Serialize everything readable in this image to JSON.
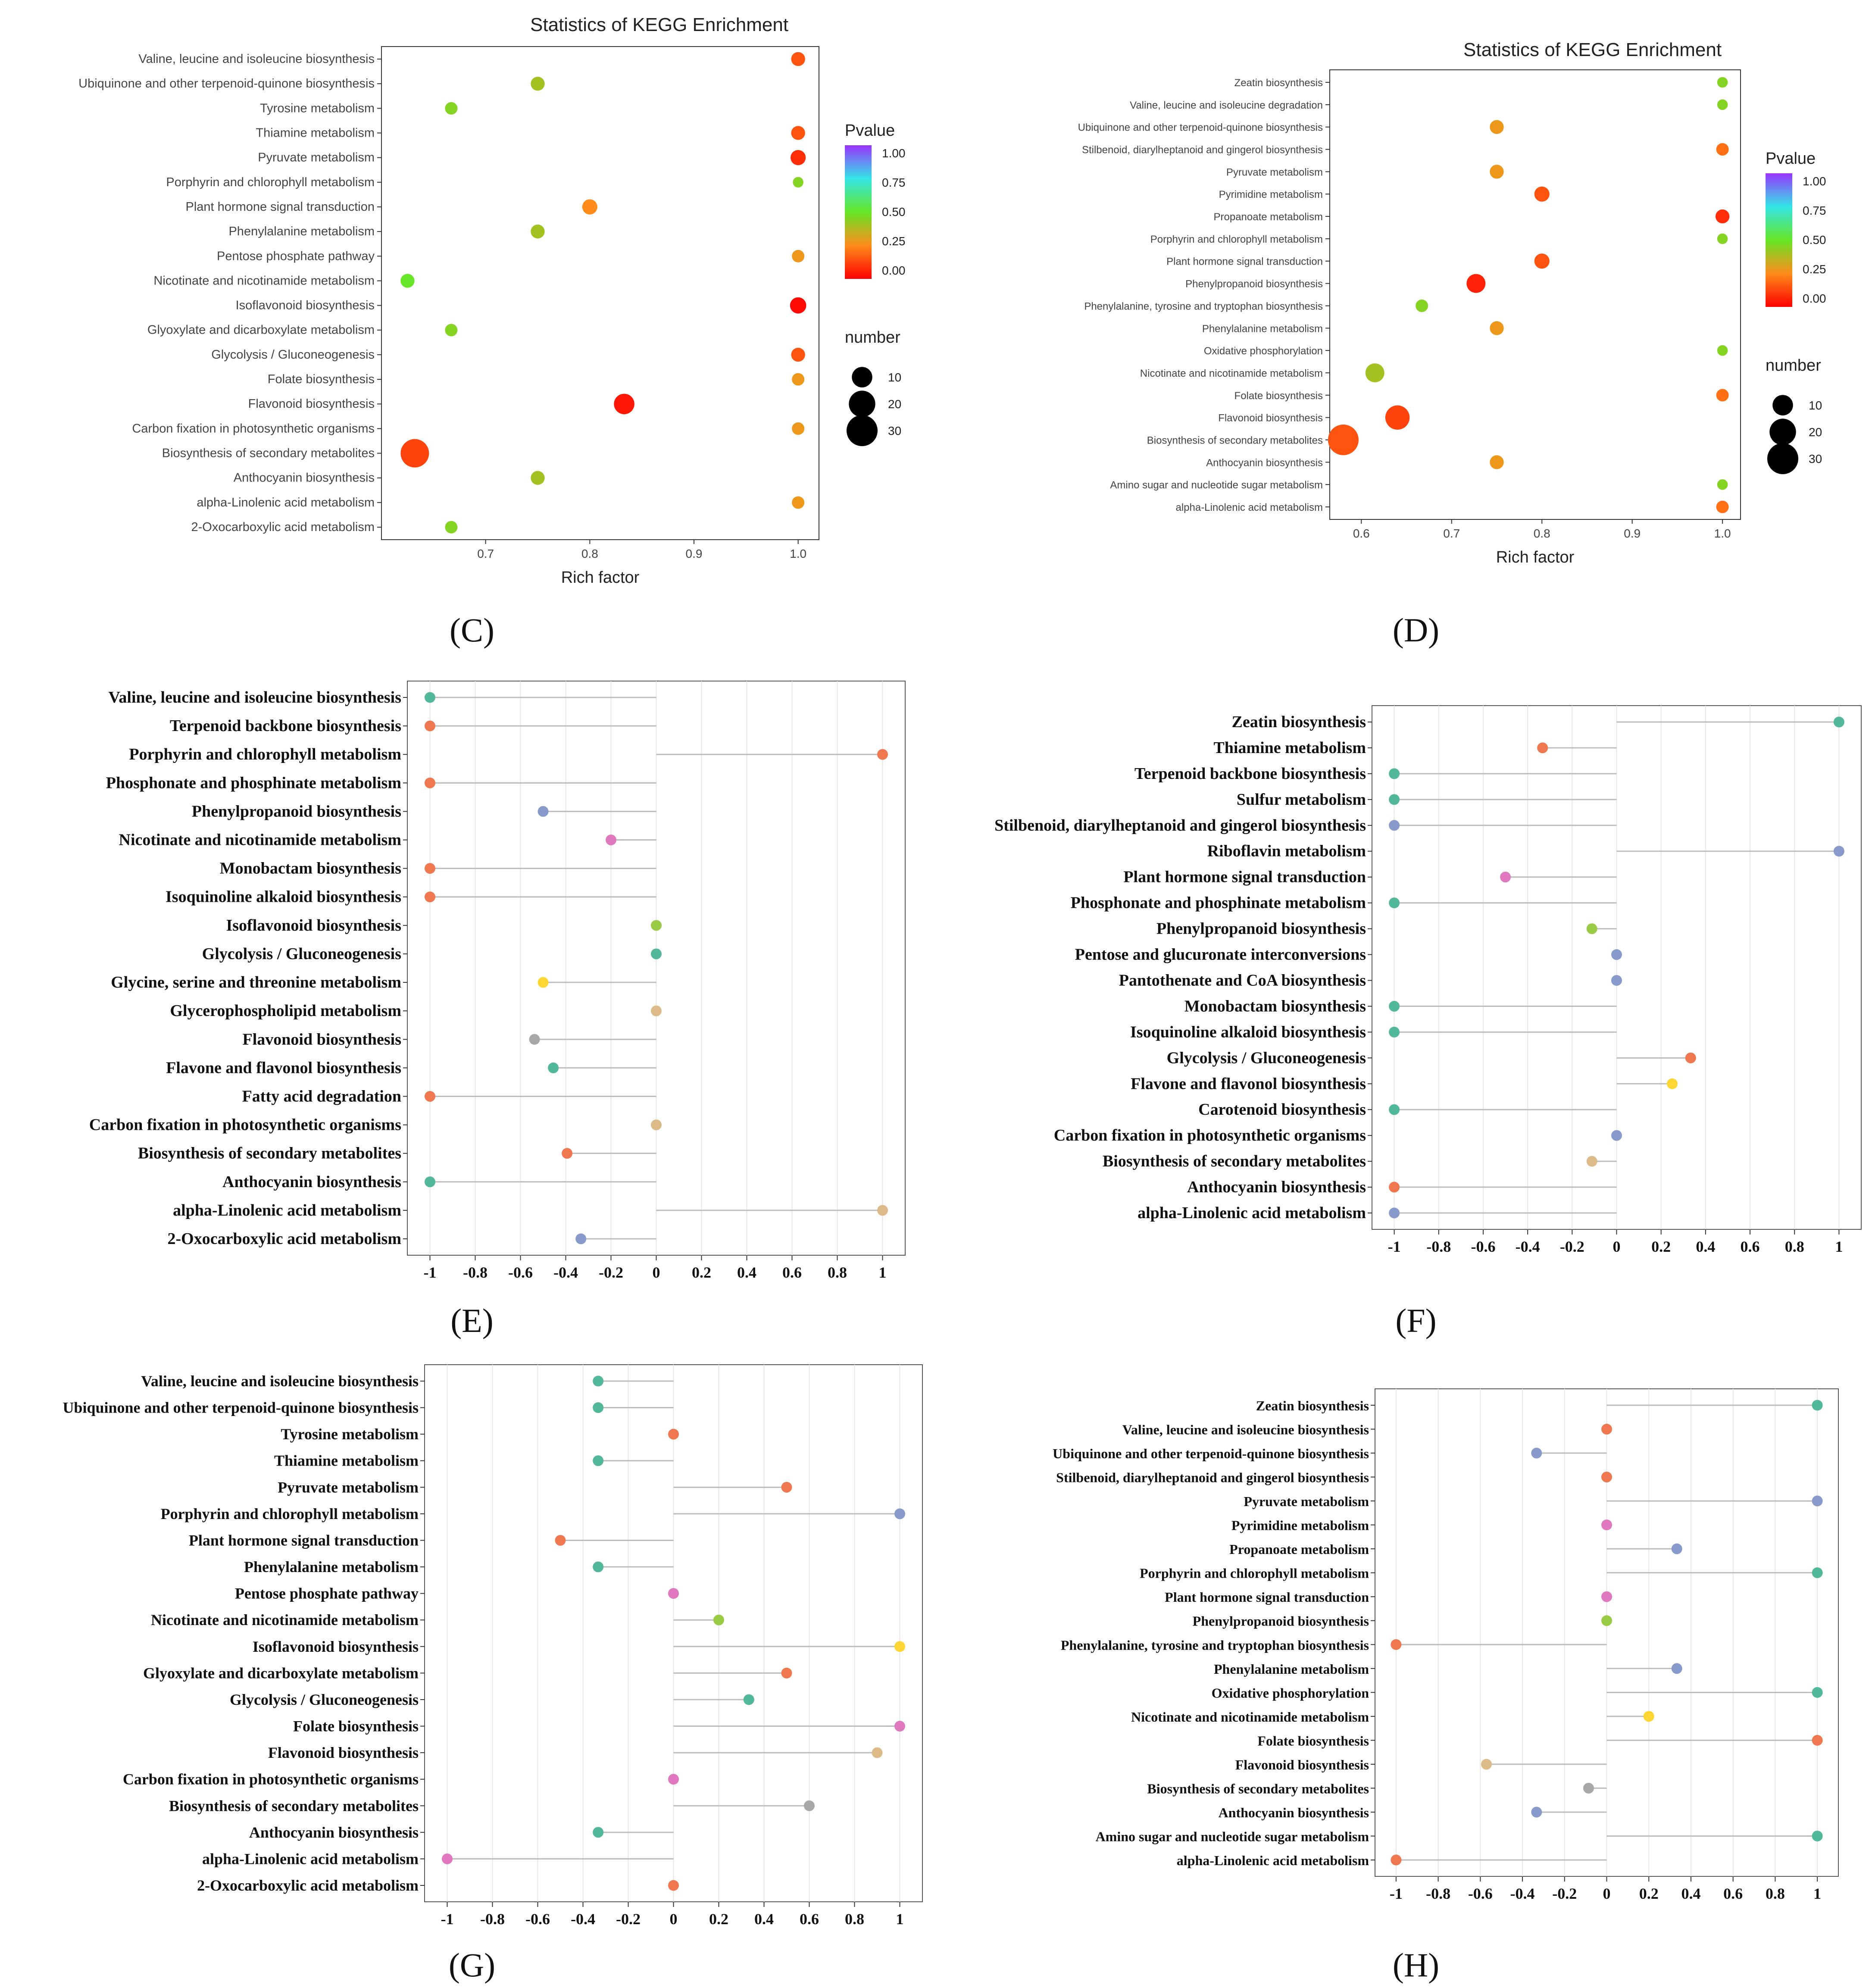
{
  "colors": {
    "pvalue_gradient": [
      "#ff0000",
      "#ff8c1a",
      "#66e626",
      "#33e6e6",
      "#9933ff"
    ],
    "lollipop_palette": {
      "teal": "#52b89a",
      "orange": "#f07850",
      "blue": "#8899cc",
      "pink": "#e078c0",
      "green": "#99cc44",
      "yellow": "#ffd633",
      "tan": "#ddbb88",
      "grey": "#a8a8a8"
    },
    "stem": "#bbbbbb",
    "grid": "#e6e6e6"
  },
  "chart_data": [
    {
      "id": "C",
      "type": "scatter",
      "caption": "(C)",
      "title": "Statistics of KEGG Enrichment",
      "xlabel": "Rich factor",
      "ylabel": "",
      "xlim": [
        0.6,
        1.02
      ],
      "xticks": [
        "0.7",
        "0.8",
        "0.9",
        "1.0"
      ],
      "xtick_values": [
        0.7,
        0.8,
        0.9,
        1.0
      ],
      "legend": {
        "color_title": "Pvalue",
        "color_ticks": [
          "1.00",
          "0.75",
          "0.50",
          "0.25",
          "0.00"
        ],
        "size_title": "number",
        "size_ticks": [
          "10",
          "20",
          "30"
        ],
        "size_values": [
          10,
          20,
          30
        ]
      },
      "categories": [
        "Valine, leucine and isoleucine biosynthesis",
        "Ubiquinone and other terpenoid-quinone biosynthesis",
        "Tyrosine metabolism",
        "Thiamine metabolism",
        "Pyruvate metabolism",
        "Porphyrin and chlorophyll metabolism",
        "Plant hormone signal transduction",
        "Phenylalanine metabolism",
        "Pentose phosphate pathway",
        "Nicotinate and nicotinamide metabolism",
        "Isoflavonoid biosynthesis",
        "Glyoxylate and dicarboxylate metabolism",
        "Glycolysis / Gluconeogenesis",
        "Folate biosynthesis",
        "Flavonoid biosynthesis",
        "Carbon fixation in photosynthetic organisms",
        "Biosynthesis of secondary metabolites",
        "Anthocyanin biosynthesis",
        "alpha-Linolenic acid metabolism",
        "2-Oxocarboxylic acid metabolism"
      ],
      "rich_factor": [
        1.0,
        0.75,
        0.667,
        1.0,
        1.0,
        1.0,
        0.8,
        0.75,
        1.0,
        0.625,
        1.0,
        0.667,
        1.0,
        1.0,
        0.833,
        1.0,
        0.632,
        0.75,
        1.0,
        0.667
      ],
      "pvalue": [
        0.15,
        0.4,
        0.45,
        0.15,
        0.08,
        0.45,
        0.25,
        0.4,
        0.28,
        0.5,
        0.02,
        0.45,
        0.15,
        0.28,
        0.04,
        0.28,
        0.12,
        0.4,
        0.28,
        0.45
      ],
      "number": [
        3,
        3,
        2,
        3,
        4,
        1,
        4,
        3,
        2,
        3,
        5,
        2,
        3,
        2,
        10,
        2,
        24,
        3,
        2,
        2
      ]
    },
    {
      "id": "D",
      "type": "scatter",
      "caption": "(D)",
      "title": "Statistics of KEGG Enrichment",
      "xlabel": "Rich factor",
      "ylabel": "",
      "xlim": [
        0.565,
        1.02
      ],
      "xticks": [
        "0.6",
        "0.7",
        "0.8",
        "0.9",
        "1.0"
      ],
      "xtick_values": [
        0.6,
        0.7,
        0.8,
        0.9,
        1.0
      ],
      "legend": {
        "color_title": "Pvalue",
        "color_ticks": [
          "1.00",
          "0.75",
          "0.50",
          "0.25",
          "0.00"
        ],
        "size_title": "number",
        "size_ticks": [
          "10",
          "20",
          "30"
        ],
        "size_values": [
          10,
          20,
          30
        ]
      },
      "categories": [
        "Zeatin biosynthesis",
        "Valine, leucine and isoleucine degradation",
        "Ubiquinone and other terpenoid-quinone biosynthesis",
        "Stilbenoid, diarylheptanoid and gingerol biosynthesis",
        "Pyruvate metabolism",
        "Pyrimidine metabolism",
        "Propanoate metabolism",
        "Porphyrin and chlorophyll metabolism",
        "Plant hormone signal transduction",
        "Phenylpropanoid biosynthesis",
        "Phenylalanine, tyrosine and tryptophan biosynthesis",
        "Phenylalanine metabolism",
        "Oxidative phosphorylation",
        "Nicotinate and nicotinamide metabolism",
        "Folate biosynthesis",
        "Flavonoid biosynthesis",
        "Biosynthesis of secondary metabolites",
        "Anthocyanin biosynthesis",
        "Amino sugar and nucleotide sugar metabolism",
        "alpha-Linolenic acid metabolism"
      ],
      "rich_factor": [
        1.0,
        1.0,
        0.75,
        1.0,
        0.75,
        0.8,
        1.0,
        1.0,
        0.8,
        0.727,
        0.667,
        0.75,
        1.0,
        0.615,
        1.0,
        0.64,
        0.58,
        0.75,
        1.0,
        1.0
      ],
      "pvalue": [
        0.45,
        0.45,
        0.28,
        0.2,
        0.28,
        0.15,
        0.08,
        0.45,
        0.15,
        0.06,
        0.45,
        0.28,
        0.45,
        0.4,
        0.2,
        0.12,
        0.15,
        0.28,
        0.45,
        0.2
      ],
      "number": [
        1,
        1,
        3,
        2,
        3,
        4,
        3,
        1,
        4,
        8,
        2,
        3,
        1,
        8,
        2,
        16,
        29,
        3,
        1,
        2
      ]
    },
    {
      "id": "E",
      "type": "lollipop",
      "caption": "(E)",
      "xlim": [
        -1.1,
        1.1
      ],
      "xticks": [
        "-1",
        "-0.8",
        "-0.6",
        "-0.4",
        "-0.2",
        "0",
        "0.2",
        "0.4",
        "0.6",
        "0.8",
        "1"
      ],
      "xtick_values": [
        -1,
        -0.8,
        -0.6,
        -0.4,
        -0.2,
        0,
        0.2,
        0.4,
        0.6,
        0.8,
        1
      ],
      "categories": [
        "Valine, leucine and isoleucine biosynthesis",
        "Terpenoid backbone biosynthesis",
        "Porphyrin and chlorophyll metabolism",
        "Phosphonate and phosphinate metabolism",
        "Phenylpropanoid biosynthesis",
        "Nicotinate and nicotinamide metabolism",
        "Monobactam biosynthesis",
        "Isoquinoline alkaloid biosynthesis",
        "Isoflavonoid biosynthesis",
        "Glycolysis / Gluconeogenesis",
        "Glycine, serine and threonine metabolism",
        "Glycerophospholipid metabolism",
        "Flavonoid biosynthesis",
        "Flavone and flavonol biosynthesis",
        "Fatty acid degradation",
        "Carbon fixation in photosynthetic organisms",
        "Biosynthesis of secondary metabolites",
        "Anthocyanin biosynthesis",
        "alpha-Linolenic acid metabolism",
        "2-Oxocarboxylic acid metabolism"
      ],
      "values": [
        -1,
        -1,
        1,
        -1,
        -0.5,
        -0.2,
        -1,
        -1,
        0,
        0,
        -0.5,
        0,
        -0.538,
        -0.455,
        -1,
        0,
        -0.394,
        -1,
        1,
        -0.333
      ],
      "point_colors": [
        "teal",
        "orange",
        "orange",
        "orange",
        "blue",
        "pink",
        "orange",
        "orange",
        "green",
        "teal",
        "yellow",
        "tan",
        "grey",
        "teal",
        "orange",
        "tan",
        "orange",
        "teal",
        "tan",
        "blue"
      ]
    },
    {
      "id": "F",
      "type": "lollipop",
      "caption": "(F)",
      "xlim": [
        -1.1,
        1.1
      ],
      "xticks": [
        "-1",
        "-0.8",
        "-0.6",
        "-0.4",
        "-0.2",
        "0",
        "0.2",
        "0.4",
        "0.6",
        "0.8",
        "1"
      ],
      "xtick_values": [
        -1,
        -0.8,
        -0.6,
        -0.4,
        -0.2,
        0,
        0.2,
        0.4,
        0.6,
        0.8,
        1
      ],
      "categories": [
        "Zeatin biosynthesis",
        "Thiamine metabolism",
        "Terpenoid backbone biosynthesis",
        "Sulfur metabolism",
        "Stilbenoid, diarylheptanoid and gingerol biosynthesis",
        "Riboflavin metabolism",
        "Plant hormone signal transduction",
        "Phosphonate and phosphinate metabolism",
        "Phenylpropanoid biosynthesis",
        "Pentose and glucuronate interconversions",
        "Pantothenate and CoA biosynthesis",
        "Monobactam biosynthesis",
        "Isoquinoline alkaloid biosynthesis",
        "Glycolysis / Gluconeogenesis",
        "Flavone and flavonol biosynthesis",
        "Carotenoid biosynthesis",
        "Carbon fixation in photosynthetic organisms",
        "Biosynthesis of secondary metabolites",
        "Anthocyanin biosynthesis",
        "alpha-Linolenic acid metabolism"
      ],
      "values": [
        1,
        -0.333,
        -1,
        -1,
        -1,
        1,
        -0.5,
        -1,
        -0.111,
        0,
        0,
        -1,
        -1,
        0.333,
        0.25,
        -1,
        0,
        -0.111,
        -1,
        -1
      ],
      "point_colors": [
        "teal",
        "orange",
        "teal",
        "teal",
        "blue",
        "blue",
        "pink",
        "teal",
        "green",
        "blue",
        "blue",
        "teal",
        "teal",
        "orange",
        "yellow",
        "teal",
        "blue",
        "tan",
        "orange",
        "blue"
      ]
    },
    {
      "id": "G",
      "type": "lollipop",
      "caption": "(G)",
      "xlim": [
        -1.1,
        1.1
      ],
      "xticks": [
        "-1",
        "-0.8",
        "-0.6",
        "-0.4",
        "-0.2",
        "0",
        "0.2",
        "0.4",
        "0.6",
        "0.8",
        "1"
      ],
      "xtick_values": [
        -1,
        -0.8,
        -0.6,
        -0.4,
        -0.2,
        0,
        0.2,
        0.4,
        0.6,
        0.8,
        1
      ],
      "categories": [
        "Valine, leucine and isoleucine biosynthesis",
        "Ubiquinone and other terpenoid-quinone biosynthesis",
        "Tyrosine metabolism",
        "Thiamine metabolism",
        "Pyruvate metabolism",
        "Porphyrin and chlorophyll metabolism",
        "Plant hormone signal transduction",
        "Phenylalanine metabolism",
        "Pentose phosphate pathway",
        "Nicotinate and nicotinamide metabolism",
        "Isoflavonoid biosynthesis",
        "Glyoxylate and dicarboxylate metabolism",
        "Glycolysis / Gluconeogenesis",
        "Folate biosynthesis",
        "Flavonoid biosynthesis",
        "Carbon fixation in photosynthetic organisms",
        "Biosynthesis of secondary metabolites",
        "Anthocyanin biosynthesis",
        "alpha-Linolenic acid metabolism",
        "2-Oxocarboxylic acid metabolism"
      ],
      "values": [
        -0.333,
        -0.333,
        0,
        -0.333,
        0.5,
        1,
        -0.5,
        -0.333,
        0,
        0.2,
        1,
        0.5,
        0.333,
        1,
        0.9,
        0,
        0.6,
        -0.333,
        -1,
        0
      ],
      "point_colors": [
        "teal",
        "teal",
        "orange",
        "teal",
        "orange",
        "blue",
        "orange",
        "teal",
        "pink",
        "green",
        "yellow",
        "orange",
        "teal",
        "pink",
        "tan",
        "pink",
        "grey",
        "teal",
        "pink",
        "orange"
      ]
    },
    {
      "id": "H",
      "type": "lollipop",
      "caption": "(H)",
      "xlim": [
        -1.1,
        1.1
      ],
      "xticks": [
        "-1",
        "-0.8",
        "-0.6",
        "-0.4",
        "-0.2",
        "0",
        "0.2",
        "0.4",
        "0.6",
        "0.8",
        "1"
      ],
      "xtick_values": [
        -1,
        -0.8,
        -0.6,
        -0.4,
        -0.2,
        0,
        0.2,
        0.4,
        0.6,
        0.8,
        1
      ],
      "categories": [
        "Zeatin biosynthesis",
        "Valine, leucine and isoleucine biosynthesis",
        "Ubiquinone and other terpenoid-quinone biosynthesis",
        "Stilbenoid, diarylheptanoid and gingerol biosynthesis",
        "Pyruvate metabolism",
        "Pyrimidine metabolism",
        "Propanoate metabolism",
        "Porphyrin and chlorophyll metabolism",
        "Plant hormone signal transduction",
        "Phenylpropanoid biosynthesis",
        "Phenylalanine, tyrosine and tryptophan biosynthesis",
        "Phenylalanine metabolism",
        "Oxidative phosphorylation",
        "Nicotinate and nicotinamide metabolism",
        "Folate biosynthesis",
        "Flavonoid biosynthesis",
        "Biosynthesis of secondary metabolites",
        "Anthocyanin biosynthesis",
        "Amino sugar and nucleotide sugar metabolism",
        "alpha-Linolenic acid metabolism"
      ],
      "values": [
        1,
        0,
        -0.333,
        0,
        1,
        0,
        0.333,
        1,
        0,
        0,
        -1,
        0.333,
        1,
        0.2,
        1,
        -0.571,
        -0.086,
        -0.333,
        1,
        -1
      ],
      "point_colors": [
        "teal",
        "orange",
        "blue",
        "orange",
        "blue",
        "pink",
        "blue",
        "teal",
        "pink",
        "green",
        "orange",
        "blue",
        "teal",
        "yellow",
        "orange",
        "tan",
        "grey",
        "blue",
        "teal",
        "orange"
      ]
    }
  ]
}
